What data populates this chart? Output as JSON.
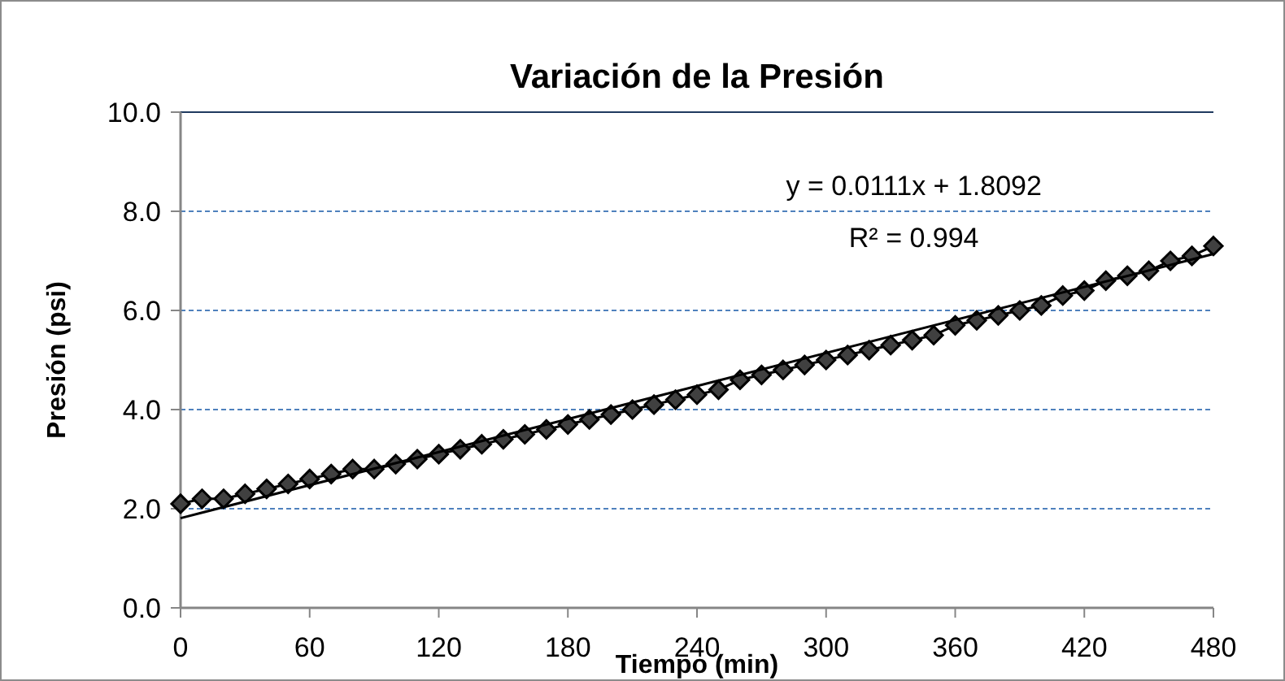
{
  "chart_data": {
    "type": "line",
    "title": "Variación de la Presión",
    "xlabel": "Tiempo (min)",
    "ylabel": "Presión (psi)",
    "x": [
      0,
      10,
      20,
      30,
      40,
      50,
      60,
      70,
      80,
      90,
      100,
      110,
      120,
      130,
      140,
      150,
      160,
      170,
      180,
      190,
      200,
      210,
      220,
      230,
      240,
      250,
      260,
      270,
      280,
      290,
      300,
      310,
      320,
      330,
      340,
      350,
      360,
      370,
      380,
      390,
      400,
      410,
      420,
      430,
      440,
      450,
      460,
      470,
      480
    ],
    "series": [
      {
        "color": "#404040",
        "marker": "diamond",
        "values": [
          2.1,
          2.2,
          2.2,
          2.3,
          2.4,
          2.5,
          2.6,
          2.7,
          2.8,
          2.8,
          2.9,
          3.0,
          3.1,
          3.2,
          3.3,
          3.4,
          3.5,
          3.6,
          3.7,
          3.8,
          3.9,
          4.0,
          4.1,
          4.2,
          4.3,
          4.4,
          4.6,
          4.7,
          4.8,
          4.9,
          5.0,
          5.1,
          5.2,
          5.3,
          5.4,
          5.5,
          5.7,
          5.8,
          5.9,
          6.0,
          6.1,
          6.3,
          6.4,
          6.6,
          6.7,
          6.8,
          7.0,
          7.1,
          7.3
        ]
      },
      {
        "color": "#000000",
        "marker": "none",
        "x": [
          0,
          480
        ],
        "values": [
          1.81,
          7.14
        ]
      }
    ],
    "annotations": [
      "y = 0.0111x + 1.8092",
      "R² = 0.994"
    ],
    "xlim": [
      0,
      480
    ],
    "xticks": [
      0,
      60,
      120,
      180,
      240,
      300,
      360,
      420,
      480
    ],
    "ylim": [
      0,
      10
    ],
    "yticks": [
      {
        "value": 0,
        "label": "0.0"
      },
      {
        "value": 2,
        "label": "2.0"
      },
      {
        "value": 4,
        "label": "4.0"
      },
      {
        "value": 6,
        "label": "6.0"
      },
      {
        "value": 8,
        "label": "8.0"
      },
      {
        "value": 10,
        "label": "10.0"
      }
    ],
    "grid": "y"
  }
}
